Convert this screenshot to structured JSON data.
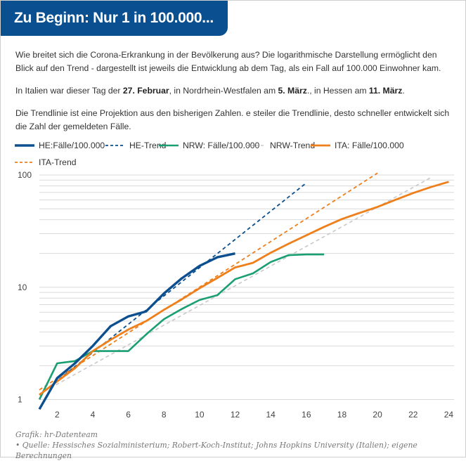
{
  "header": {
    "title": "Zu Beginn: Nur 1 in 100.000..."
  },
  "intro": {
    "p1": "Wie breitet sich die Corona-Erkrankung in der Bevölkerung aus? Die logarithmische Darstellung ermöglicht den Blick auf den Trend - dargestellt ist jeweils die Entwicklung ab dem Tag, als ein Fall auf 100.000 Einwohner kam.",
    "p2_a": "In Italien war dieser Tag der ",
    "p2_b": "27. Februar",
    "p2_c": ", in Nordrhein-Westfalen am ",
    "p2_d": "5. März",
    "p2_e": "., in Hessen am ",
    "p2_f": "11. März",
    "p2_g": ".",
    "p3": "Die Trendlinie ist eine Projektion aus den bisherigen Zahlen. e steiler die Trendlinie, desto schneller entwickelt sich die Zahl der gemeldeten Fälle."
  },
  "colors": {
    "he": "#0b4f8f",
    "nrw": "#1a9e73",
    "nrw_trend": "#c9c9c9",
    "ita": "#ee7f1a",
    "grid": "#d9d9d9",
    "axis_text": "#444444"
  },
  "chart_data": {
    "type": "line",
    "title": "",
    "xlabel": "",
    "ylabel": "",
    "y_scale": "log",
    "xlim": [
      1,
      24.3
    ],
    "ylim": [
      0.8,
      100
    ],
    "x_ticks": [
      2,
      4,
      6,
      8,
      10,
      12,
      14,
      16,
      18,
      20,
      22,
      24
    ],
    "y_ticks": [
      1,
      10,
      100
    ],
    "grid": true,
    "legend_position": "top-left",
    "series": [
      {
        "key": "he",
        "name": "HE:Fälle/100.000",
        "style": "solid",
        "width": 3.4,
        "x": [
          1,
          2,
          3,
          4,
          5,
          6,
          7,
          8,
          9,
          10,
          11,
          12
        ],
        "y": [
          0.82,
          1.55,
          2.1,
          3.0,
          4.5,
          5.5,
          6.1,
          8.8,
          12.0,
          15.5,
          18.5,
          20.0
        ]
      },
      {
        "key": "he_trend",
        "name": "HE-Trend",
        "style": "dashed",
        "width": 1.8,
        "x": [
          1,
          16
        ],
        "y": [
          1.1,
          85
        ]
      },
      {
        "key": "nrw",
        "name": "NRW: Fälle/100.000",
        "style": "solid",
        "width": 2.6,
        "x": [
          1,
          2,
          3,
          4,
          5,
          6,
          7,
          8,
          9,
          10,
          11,
          12,
          13,
          14,
          15,
          16,
          17
        ],
        "y": [
          1.0,
          2.1,
          2.2,
          2.7,
          2.7,
          2.7,
          3.8,
          5.2,
          6.4,
          7.7,
          8.5,
          11.8,
          13.3,
          16.8,
          19.3,
          19.6,
          19.6
        ]
      },
      {
        "key": "nrw_trend",
        "name": "NRW-Trend",
        "style": "dashed",
        "width": 1.6,
        "x": [
          1,
          23
        ],
        "y": [
          1.12,
          95
        ]
      },
      {
        "key": "ita",
        "name": "ITA: Fälle/100.000",
        "style": "solid",
        "width": 2.8,
        "x": [
          1,
          2,
          3,
          4,
          5,
          6,
          7,
          8,
          9,
          10,
          11,
          12,
          13,
          14,
          15,
          16,
          17,
          18,
          19,
          20,
          21,
          22,
          23,
          24
        ],
        "y": [
          1.1,
          1.45,
          1.9,
          2.7,
          3.4,
          4.2,
          5.0,
          6.3,
          7.8,
          9.8,
          12.1,
          15.0,
          16.5,
          20.3,
          24.4,
          29.0,
          34.5,
          40.5,
          46.0,
          52.0,
          60.0,
          69.0,
          78.0,
          87.0
        ]
      },
      {
        "key": "ita_trend",
        "name": "ITA-Trend",
        "style": "dashed",
        "width": 1.8,
        "x": [
          1,
          20
        ],
        "y": [
          1.22,
          104
        ]
      }
    ]
  },
  "footer": {
    "credit": "Grafik: hr-Datenteam",
    "source": "• Quelle: Hessisches Sozialministerium; Robert-Koch-Institut; Johns Hopkins University (Italien); eigene Berechnungen"
  }
}
